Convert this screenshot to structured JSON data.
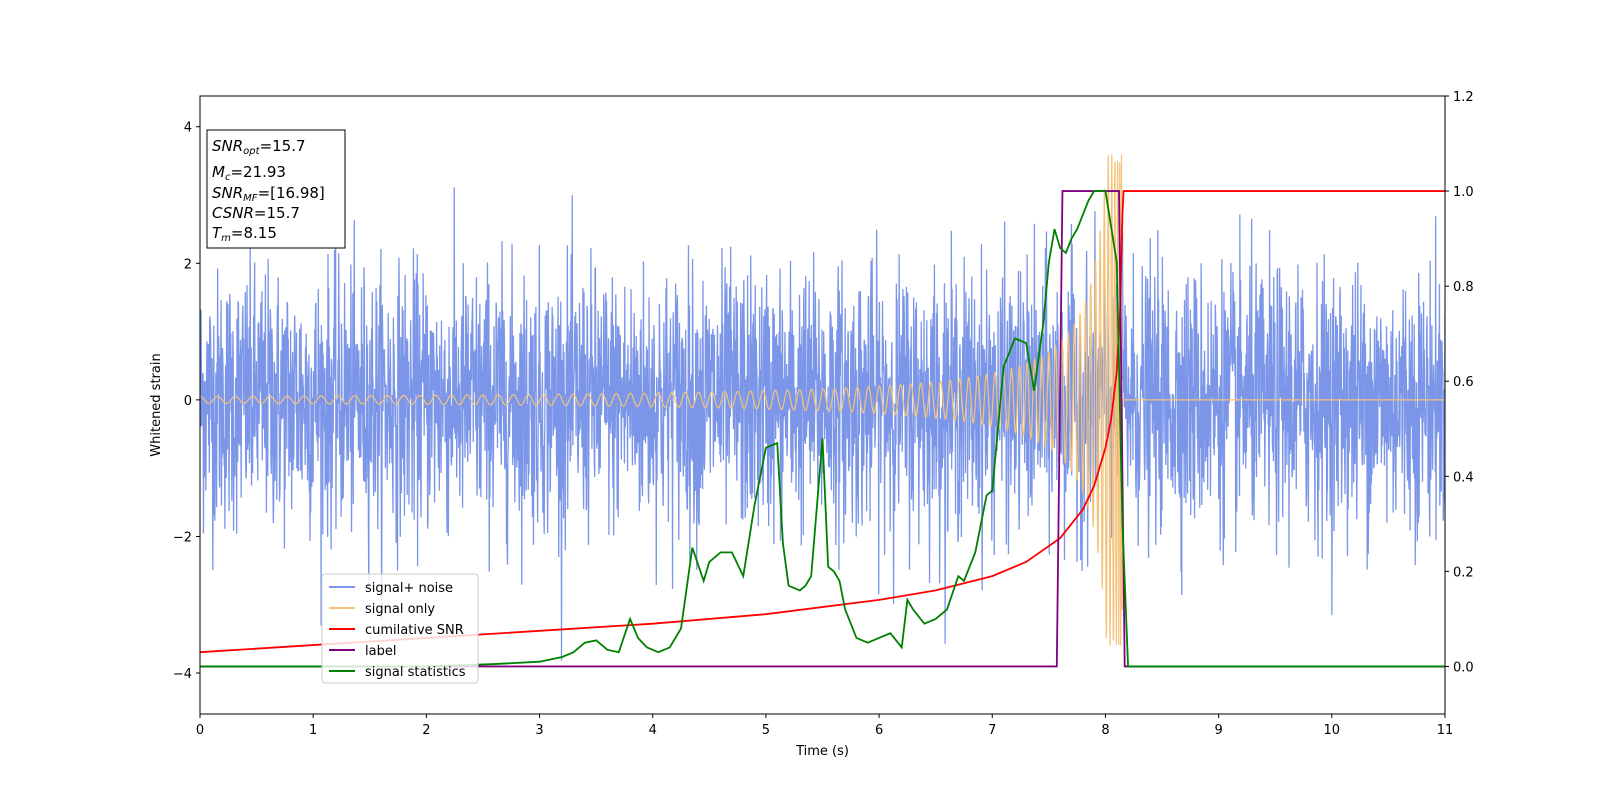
{
  "chart_data": {
    "type": "line",
    "xlabel": "Time (s)",
    "ylabel": "Whitened strain",
    "xlim": [
      0,
      11
    ],
    "ylim": [
      -4.6,
      4.45
    ],
    "ylim_right": [
      -0.1,
      1.2
    ],
    "x_ticks": [
      0,
      1,
      2,
      3,
      4,
      5,
      6,
      7,
      8,
      9,
      10,
      11
    ],
    "y_ticks": [
      -4,
      -2,
      0,
      2,
      4
    ],
    "y_ticks_right": [
      0.0,
      0.2,
      0.4,
      0.6,
      0.8,
      1.0,
      1.2
    ],
    "grid": false,
    "legend_placement": "lower-left",
    "info_box": {
      "snr_opt": {
        "base": "SNR",
        "sub": "opt",
        "value": "=15.7"
      },
      "mc": {
        "base": "M",
        "sub": "c",
        "value": "=21.93"
      },
      "snr_mf": {
        "base": "SNR",
        "sub": "MF",
        "value": "=[16.98]"
      },
      "csnr": {
        "base": "CSNR",
        "sub": "",
        "value": "=15.7"
      },
      "tm": {
        "base": "T",
        "sub": "m",
        "value": "=8.15"
      }
    },
    "series": [
      {
        "name": "signal+ noise",
        "axis": "left",
        "color": "#7b96e8",
        "kind": "noise",
        "sigma": 0.95,
        "envelope_max_abs": 4.1,
        "x_range": [
          0,
          11
        ]
      },
      {
        "name": "signal only",
        "axis": "left",
        "color": "#f5c27a",
        "kind": "chirp",
        "merger_time": 8.15,
        "peak_amplitude": 3.6,
        "start_amplitude": 0.05,
        "x_range": [
          0,
          11
        ]
      },
      {
        "name": "cumilative SNR",
        "axis": "right",
        "color": "#ff0000",
        "x": [
          0,
          1,
          2,
          3,
          4,
          5,
          6,
          6.5,
          7,
          7.3,
          7.6,
          7.8,
          7.9,
          8.0,
          8.05,
          8.1,
          8.13,
          8.15,
          8.16,
          11
        ],
        "y": [
          0.03,
          0.045,
          0.06,
          0.075,
          0.09,
          0.11,
          0.14,
          0.16,
          0.19,
          0.22,
          0.27,
          0.33,
          0.38,
          0.46,
          0.52,
          0.62,
          0.75,
          0.95,
          1.0,
          1.0
        ]
      },
      {
        "name": "label",
        "axis": "right",
        "color": "#800080",
        "x": [
          0,
          7.57,
          7.62,
          8.12,
          8.17,
          11
        ],
        "y": [
          0.0,
          0.0,
          1.0,
          1.0,
          0.0,
          0.0
        ]
      },
      {
        "name": "signal statistics",
        "axis": "right",
        "color": "#008000",
        "x": [
          0,
          1,
          2,
          2.6,
          3.0,
          3.2,
          3.3,
          3.4,
          3.5,
          3.6,
          3.7,
          3.8,
          3.87,
          3.95,
          4.05,
          4.15,
          4.25,
          4.35,
          4.45,
          4.5,
          4.6,
          4.7,
          4.8,
          4.9,
          5.0,
          5.1,
          5.15,
          5.2,
          5.3,
          5.35,
          5.4,
          5.5,
          5.55,
          5.6,
          5.65,
          5.7,
          5.8,
          5.9,
          6.0,
          6.1,
          6.2,
          6.25,
          6.3,
          6.4,
          6.5,
          6.6,
          6.7,
          6.75,
          6.85,
          6.95,
          7.0,
          7.1,
          7.2,
          7.3,
          7.37,
          7.45,
          7.5,
          7.55,
          7.6,
          7.65,
          7.7,
          7.75,
          7.8,
          7.85,
          7.9,
          8.0,
          8.1,
          8.15,
          8.2,
          8.3,
          11
        ],
        "y": [
          0.0,
          0.0,
          0.0,
          0.005,
          0.01,
          0.02,
          0.03,
          0.05,
          0.055,
          0.035,
          0.03,
          0.1,
          0.06,
          0.04,
          0.03,
          0.04,
          0.08,
          0.25,
          0.18,
          0.22,
          0.24,
          0.24,
          0.19,
          0.34,
          0.46,
          0.47,
          0.26,
          0.17,
          0.16,
          0.17,
          0.19,
          0.48,
          0.21,
          0.2,
          0.18,
          0.12,
          0.06,
          0.05,
          0.06,
          0.07,
          0.04,
          0.14,
          0.12,
          0.09,
          0.1,
          0.12,
          0.19,
          0.18,
          0.24,
          0.36,
          0.37,
          0.63,
          0.69,
          0.68,
          0.58,
          0.72,
          0.85,
          0.92,
          0.88,
          0.87,
          0.9,
          0.92,
          0.95,
          0.98,
          1.0,
          1.0,
          0.85,
          0.3,
          0.0,
          0.0,
          0.0
        ]
      }
    ]
  }
}
